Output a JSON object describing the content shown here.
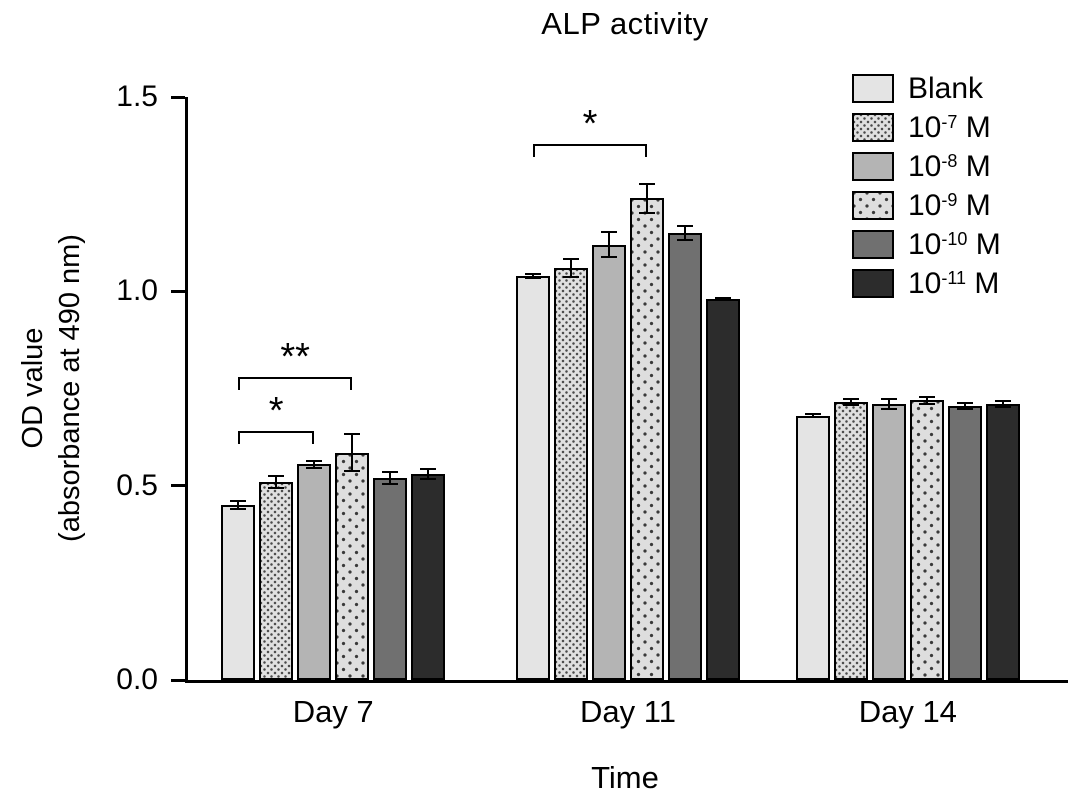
{
  "chart_data": {
    "type": "bar",
    "title": "ALP activity",
    "xlabel": "Time",
    "ylabel_line1": "OD value",
    "ylabel_line2": "(absorbance at 490 nm)",
    "categories": [
      "Day 7",
      "Day 11",
      "Day 14"
    ],
    "ylim": [
      0,
      1.5
    ],
    "yticks": [
      0,
      0.5,
      1.0,
      1.5
    ],
    "ytick_labels": [
      "0.0",
      "0.5",
      "1.0",
      "1.5"
    ],
    "grid": false,
    "legend_position": "top-right",
    "series": [
      {
        "name": "Blank",
        "label_text": "Blank",
        "label_sup": "",
        "label_tail": "",
        "pattern": "solid",
        "fill": "#e4e4e4",
        "values": [
          0.45,
          1.04,
          0.68
        ],
        "errors": [
          0.012,
          0.008,
          0.006
        ]
      },
      {
        "name": "10^-7 M",
        "label_text": "10",
        "label_sup": "-7",
        "label_tail": " M",
        "pattern": "checker-fine",
        "fill": "#e0e0e0",
        "values": [
          0.51,
          1.06,
          0.715
        ],
        "errors": [
          0.018,
          0.025,
          0.01
        ]
      },
      {
        "name": "10^-8 M",
        "label_text": "10",
        "label_sup": "-8",
        "label_tail": " M",
        "pattern": "solid",
        "fill": "#b4b4b4",
        "values": [
          0.555,
          1.12,
          0.71
        ],
        "errors": [
          0.012,
          0.035,
          0.015
        ]
      },
      {
        "name": "10^-9 M",
        "label_text": "10",
        "label_sup": "-9",
        "label_tail": " M",
        "pattern": "dots",
        "fill": "#dedede",
        "values": [
          0.585,
          1.24,
          0.72
        ],
        "errors": [
          0.05,
          0.04,
          0.012
        ]
      },
      {
        "name": "10^-10 M",
        "label_text": "10",
        "label_sup": "-10",
        "label_tail": " M",
        "pattern": "solid",
        "fill": "#707070",
        "values": [
          0.52,
          1.15,
          0.705
        ],
        "errors": [
          0.018,
          0.02,
          0.01
        ]
      },
      {
        "name": "10^-11 M",
        "label_text": "10",
        "label_sup": "-11",
        "label_tail": " M",
        "pattern": "solid",
        "fill": "#2c2c2c",
        "values": [
          0.53,
          0.98,
          0.71
        ],
        "errors": [
          0.015,
          0.005,
          0.01
        ]
      }
    ],
    "annotations": [
      {
        "category_index": 0,
        "from_series": 0,
        "to_series": 2,
        "label": "*",
        "y": 0.64
      },
      {
        "category_index": 0,
        "from_series": 0,
        "to_series": 3,
        "label": "**",
        "y": 0.78
      },
      {
        "category_index": 1,
        "from_series": 0,
        "to_series": 3,
        "label": "*",
        "y": 1.38
      }
    ]
  },
  "colors": {
    "axis": "#000000",
    "bar_border": "#000000",
    "background": "#ffffff"
  }
}
